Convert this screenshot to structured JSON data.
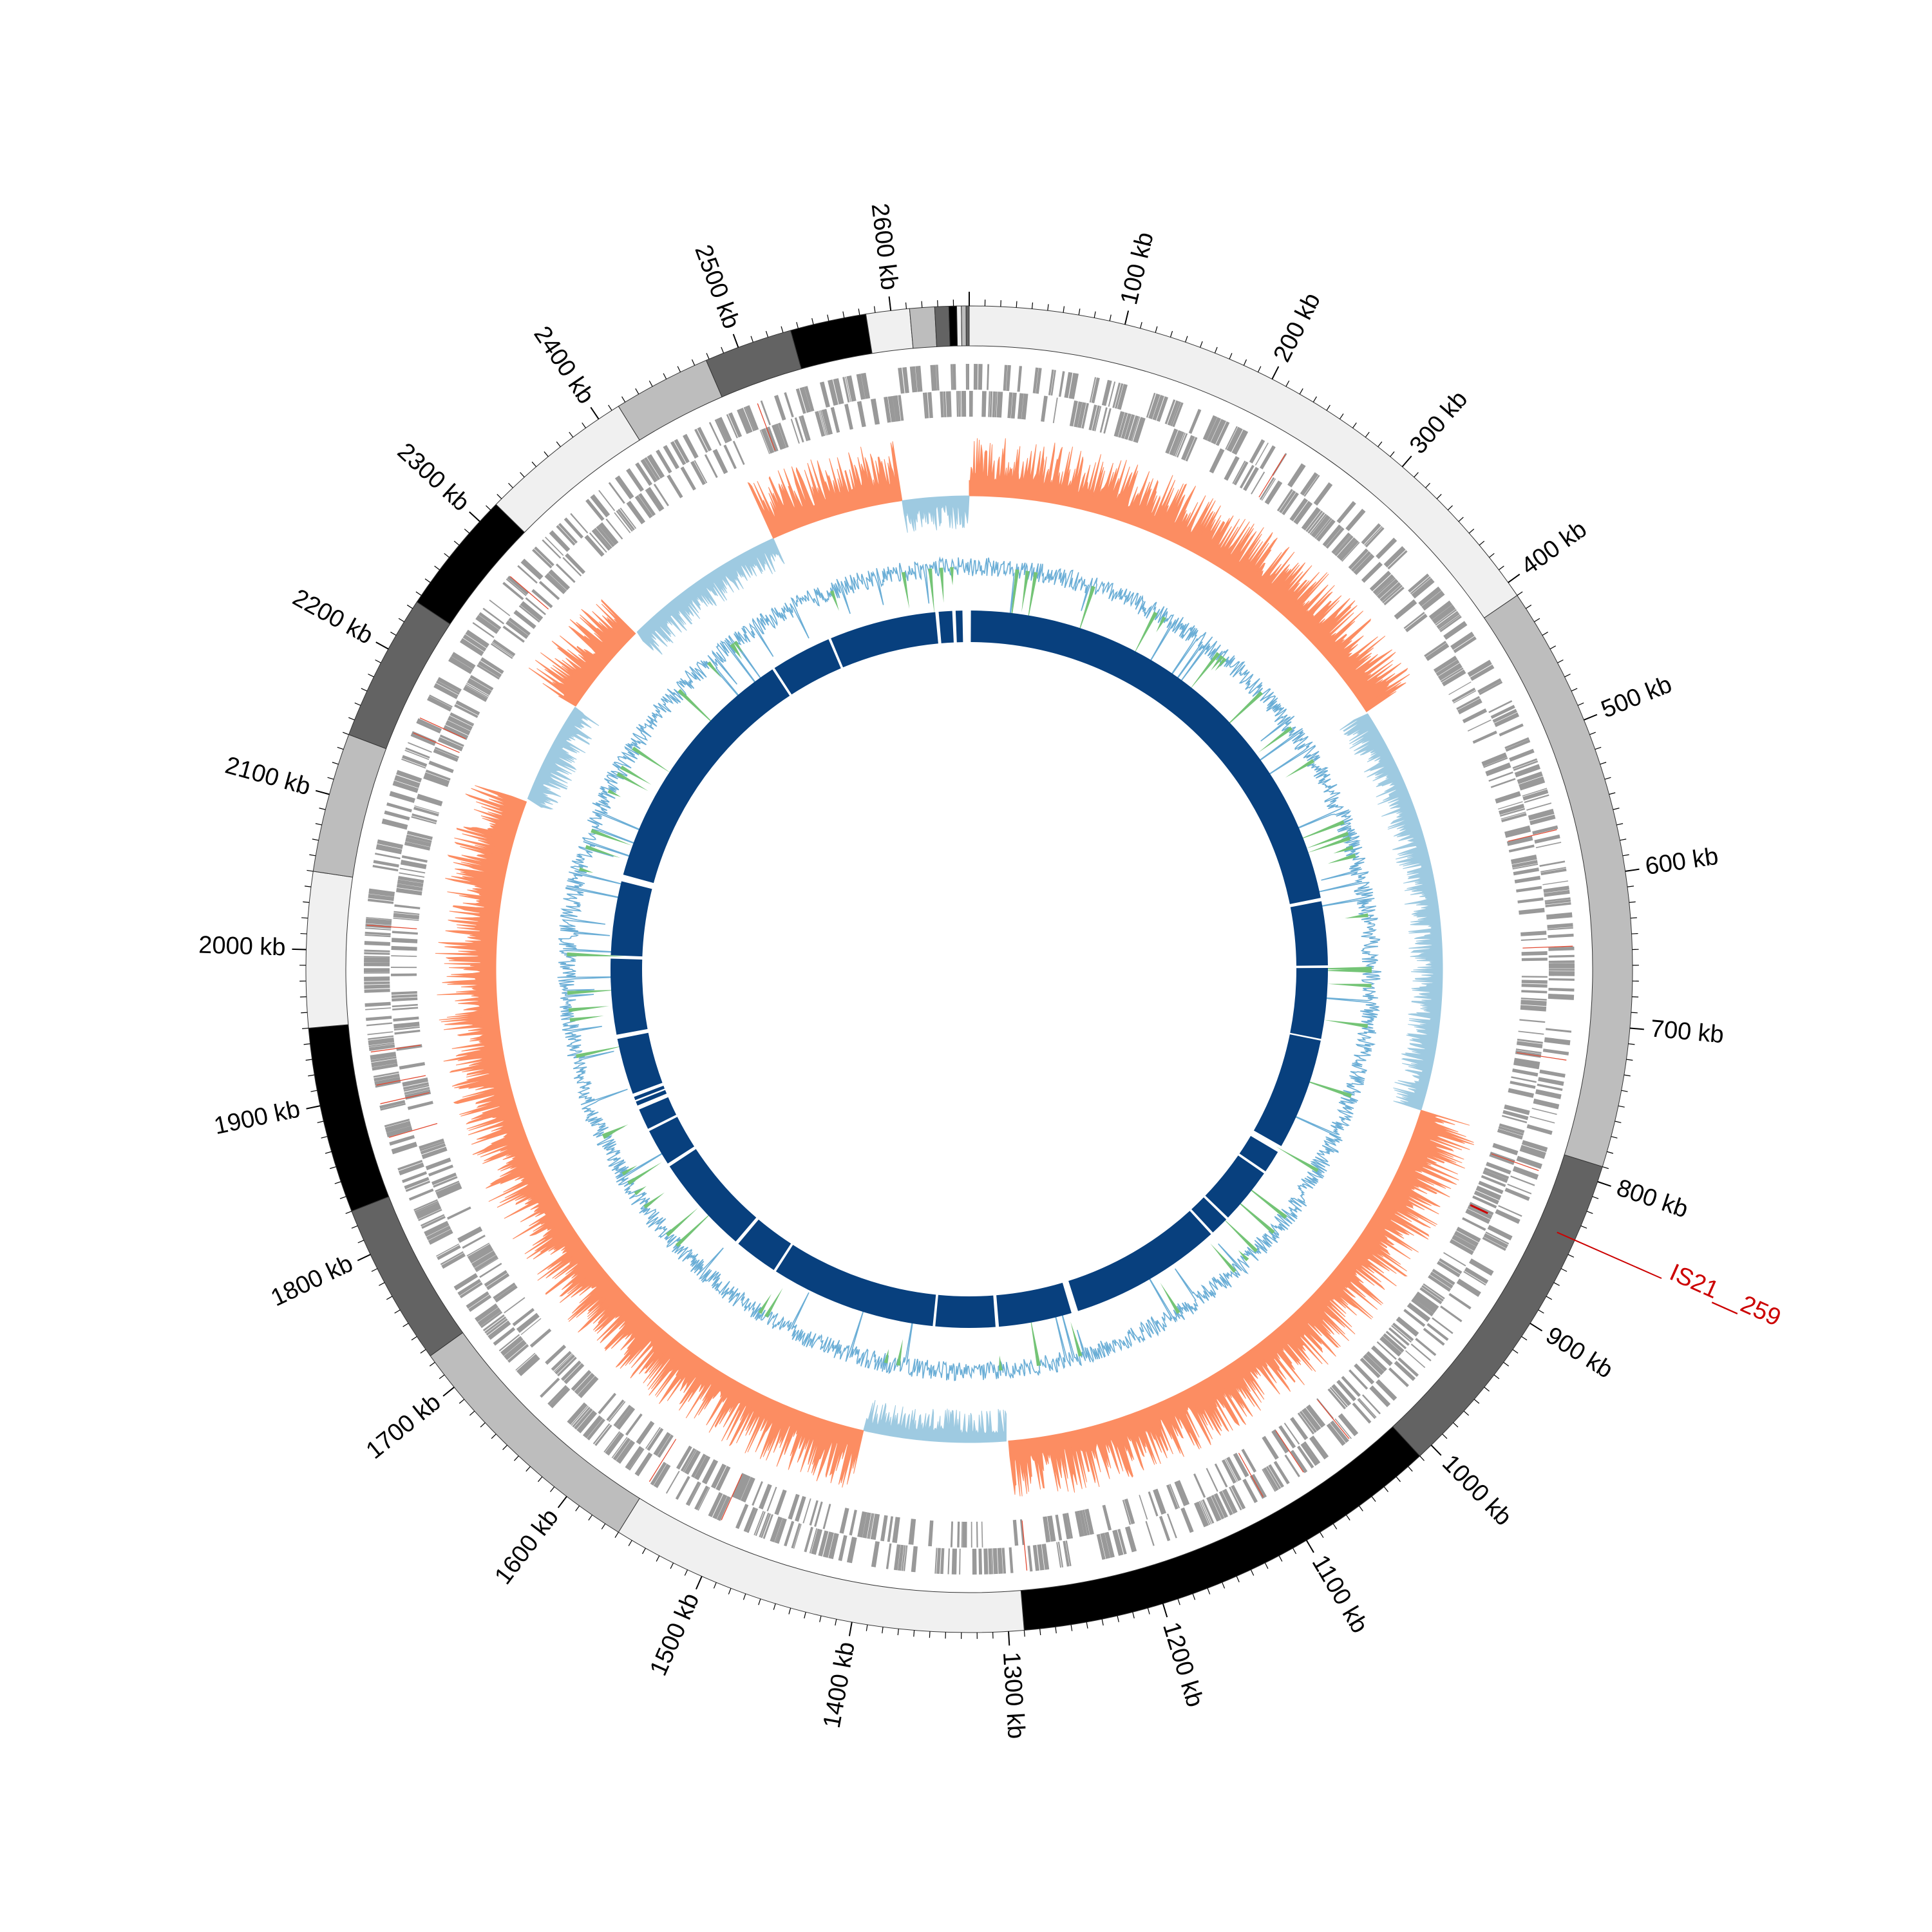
{
  "genome": {
    "length_kb": 2650,
    "tick_labels": [
      "100 kb",
      "200 kb",
      "300 kb",
      "400 kb",
      "500 kb",
      "600 kb",
      "700 kb",
      "800 kb",
      "900 kb",
      "1000 kb",
      "1100 kb",
      "1200 kb",
      "1300 kb",
      "1400 kb",
      "1500 kb",
      "1600 kb",
      "1700 kb",
      "1800 kb",
      "1900 kb",
      "2000 kb",
      "2100 kb",
      "2200 kb",
      "2300 kb",
      "2400 kb",
      "2500 kb",
      "2600 kb"
    ]
  },
  "contigs": [
    {
      "start": 0,
      "end": 410,
      "color": "#f0f0f0"
    },
    {
      "start": 410,
      "end": 790,
      "color": "#bdbdbd"
    },
    {
      "start": 790,
      "end": 1010,
      "color": "#636363"
    },
    {
      "start": 1010,
      "end": 1290,
      "color": "#000000"
    },
    {
      "start": 1290,
      "end": 1560,
      "color": "#f0f0f0"
    },
    {
      "start": 1560,
      "end": 1725,
      "color": "#bdbdbd"
    },
    {
      "start": 1725,
      "end": 1830,
      "color": "#636363"
    },
    {
      "start": 1830,
      "end": 1950,
      "color": "#000000"
    },
    {
      "start": 1950,
      "end": 2050,
      "color": "#f0f0f0"
    },
    {
      "start": 2050,
      "end": 2140,
      "color": "#bdbdbd"
    },
    {
      "start": 2140,
      "end": 2235,
      "color": "#636363"
    },
    {
      "start": 2235,
      "end": 2315,
      "color": "#000000"
    },
    {
      "start": 2315,
      "end": 2415,
      "color": "#f0f0f0"
    },
    {
      "start": 2415,
      "end": 2478,
      "color": "#bdbdbd"
    },
    {
      "start": 2478,
      "end": 2535,
      "color": "#636363"
    },
    {
      "start": 2535,
      "end": 2584,
      "color": "#000000"
    },
    {
      "start": 2584,
      "end": 2612,
      "color": "#f0f0f0"
    },
    {
      "start": 2612,
      "end": 2628,
      "color": "#bdbdbd"
    },
    {
      "start": 2628,
      "end": 2637,
      "color": "#636363"
    },
    {
      "start": 2637,
      "end": 2642,
      "color": "#000000"
    },
    {
      "start": 2642,
      "end": 2645,
      "color": "#f0f0f0"
    },
    {
      "start": 2645,
      "end": 2648,
      "color": "#bdbdbd"
    },
    {
      "start": 2648,
      "end": 2650,
      "color": "#636363"
    }
  ],
  "gc_skew_segments": [
    {
      "start": 0,
      "end": 420,
      "color": "#fc8d62"
    },
    {
      "start": 420,
      "end": 790,
      "color": "#9ecae1"
    },
    {
      "start": 790,
      "end": 1290,
      "color": "#fc8d62"
    },
    {
      "start": 1290,
      "end": 1420,
      "color": "#9ecae1"
    },
    {
      "start": 1420,
      "end": 2140,
      "color": "#fc8d62"
    },
    {
      "start": 2140,
      "end": 2235,
      "color": "#9ecae1"
    },
    {
      "start": 2235,
      "end": 2320,
      "color": "#fc8d62"
    },
    {
      "start": 2320,
      "end": 2470,
      "color": "#9ecae1"
    },
    {
      "start": 2470,
      "end": 2590,
      "color": "#fc8d62"
    },
    {
      "start": 2590,
      "end": 2650,
      "color": "#9ecae1"
    }
  ],
  "collinear_blocks": [
    {
      "start": 2,
      "end": 578
    },
    {
      "start": 582,
      "end": 658
    },
    {
      "start": 661,
      "end": 745
    },
    {
      "start": 747,
      "end": 880
    },
    {
      "start": 888,
      "end": 915
    },
    {
      "start": 918,
      "end": 985
    },
    {
      "start": 988,
      "end": 1010
    },
    {
      "start": 1013,
      "end": 1195
    },
    {
      "start": 1203,
      "end": 1290
    },
    {
      "start": 1294,
      "end": 1365
    },
    {
      "start": 1368,
      "end": 1565
    },
    {
      "start": 1568,
      "end": 1620
    },
    {
      "start": 1624,
      "end": 1742
    },
    {
      "start": 1746,
      "end": 1790
    },
    {
      "start": 1793,
      "end": 1818
    },
    {
      "start": 1823,
      "end": 1828
    },
    {
      "start": 1830,
      "end": 1834
    },
    {
      "start": 1838,
      "end": 1905
    },
    {
      "start": 1910,
      "end": 2000
    },
    {
      "start": 2004,
      "end": 2092
    },
    {
      "start": 2100,
      "end": 2405
    },
    {
      "start": 2408,
      "end": 2480
    },
    {
      "start": 2483,
      "end": 2610
    },
    {
      "start": 2614,
      "end": 2630
    },
    {
      "start": 2634,
      "end": 2642
    }
  ],
  "annotation": {
    "label": "IS21__259",
    "position_kb": 848,
    "color": "#cc0000"
  },
  "colors": {
    "gene_track": "#999999",
    "gc_content": "#74c476",
    "gc_content_alt": "#6baed6",
    "collinear": "#08407e"
  }
}
